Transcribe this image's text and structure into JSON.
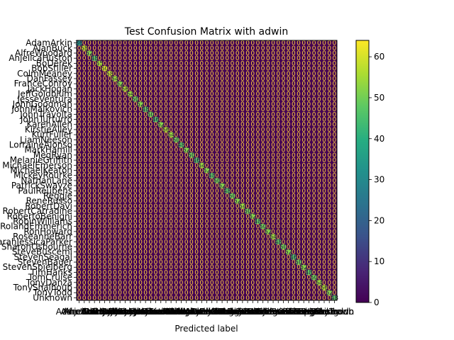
{
  "chart_data": {
    "type": "heatmap",
    "title": "Test Confusion Matrix with adwin",
    "xlabel": "Predicted label",
    "ylabel": "",
    "labels": [
      "AdamArkin",
      "AlanBuck",
      "AlfreWoodard",
      "AnjelicaHuston",
      "BoDerek",
      "BobStiller",
      "ColmMeaney",
      "DanFassey",
      "FranceConroy",
      "JackHogan",
      "JeffGoldblum",
      "JesseVentura",
      "JohnGoodman",
      "JohnMalkovich",
      "JohnTravolta",
      "JohnTurturro",
      "KarenAllen",
      "KirstieAlley",
      "KurtFuller",
      "LiamNeeson",
      "LorraineAlonso",
      "MarkHamill",
      "MegRyan",
      "MelanieGriffith",
      "MichaelEmerson",
      "MichaelKeaton",
      "MickeyRourke",
      "NathanLane",
      "PatrickSwayze",
      "PaulReubens",
      "Reggie",
      "ReneRusso",
      "RobertDavi",
      "RobertCarradine",
      "RobertoBenigni",
      "RobinWilliams",
      "RolandEmmerich",
      "RonHoward",
      "RoseanneBarr",
      "SarahJessicaParker",
      "SharonOsbourne",
      "SteveBuscemi",
      "StevenSeagal",
      "StevenBauer",
      "StevenSpielberg",
      "TimHanks",
      "TomCruise",
      "TonyDanza",
      "TonyShalhoub",
      "TonyTodd",
      "Unknown"
    ],
    "diagonal": [
      36,
      58,
      52,
      48,
      55,
      60,
      58,
      54,
      52,
      56,
      54,
      50,
      52,
      48,
      50,
      46,
      52,
      56,
      54,
      50,
      48,
      52,
      50,
      46,
      54,
      52,
      48,
      50,
      52,
      48,
      50,
      52,
      54,
      50,
      52,
      48,
      50,
      52,
      54,
      48,
      50,
      52,
      46,
      50,
      52,
      48,
      50,
      54,
      56,
      52,
      48
    ],
    "off_diagonal_typical": 0,
    "value_range": [
      0,
      64
    ],
    "colorbar_ticks": [
      0,
      10,
      20,
      30,
      40,
      50,
      60
    ],
    "colormap": "viridis",
    "annotation_color": "#ffd23f",
    "grid": false,
    "legend": "colorbar-right"
  }
}
